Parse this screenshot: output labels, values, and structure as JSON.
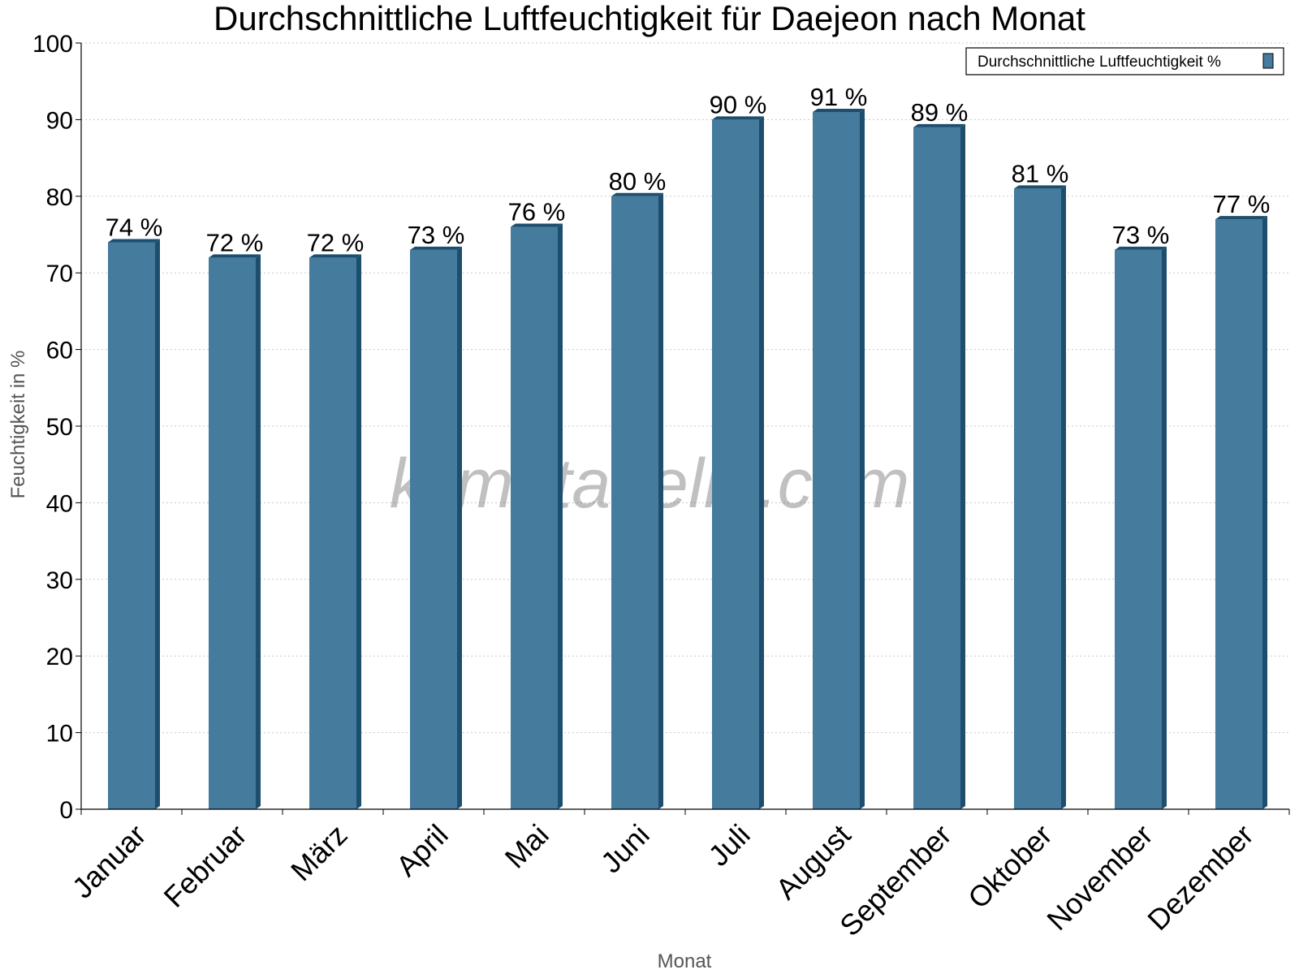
{
  "chart_data": {
    "type": "bar",
    "title": "Durchschnittliche Luftfeuchtigkeit für Daejeon nach Monat",
    "xlabel": "Monat",
    "ylabel": "Feuchtigkeit in %",
    "ylim": [
      0,
      100
    ],
    "yticks": [
      0,
      10,
      20,
      30,
      40,
      50,
      60,
      70,
      80,
      90,
      100
    ],
    "grid": true,
    "legend_position": "top-right",
    "categories": [
      "Januar",
      "Februar",
      "März",
      "April",
      "Mai",
      "Juni",
      "Juli",
      "August",
      "September",
      "Oktober",
      "November",
      "Dezember"
    ],
    "series": [
      {
        "name": "Durchschnittliche Luftfeuchtigkeit %",
        "values": [
          74,
          72,
          72,
          73,
          76,
          80,
          90,
          91,
          89,
          81,
          73,
          77
        ],
        "labels": [
          "74 %",
          "72 %",
          "72 %",
          "73 %",
          "76 %",
          "80 %",
          "90 %",
          "91 %",
          "89 %",
          "81 %",
          "73 %",
          "77 %"
        ]
      }
    ],
    "colors": {
      "bar": "#457b9d",
      "bar_side": "#1d4e6e",
      "grid": "#c8c8c8",
      "axis": "#000000"
    },
    "watermark": "klimatabelle.com"
  }
}
